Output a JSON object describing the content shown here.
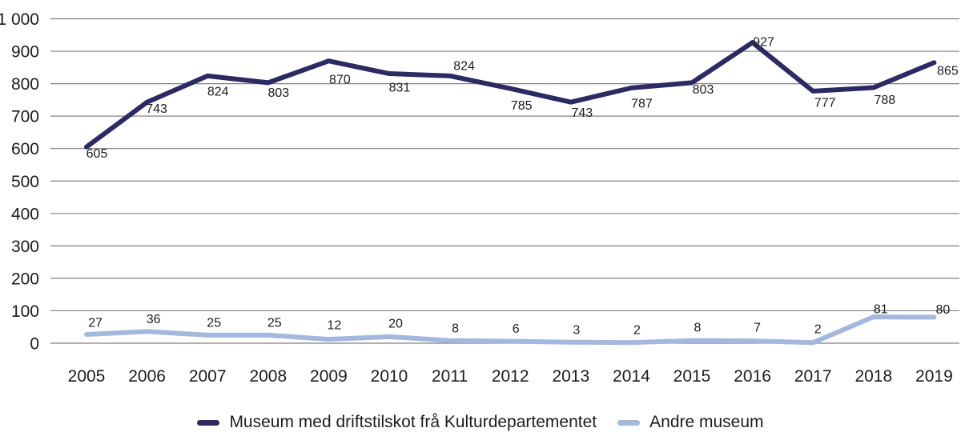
{
  "chart_data": {
    "type": "line",
    "title": "",
    "xlabel": "",
    "ylabel": "",
    "categories": [
      "2005",
      "2006",
      "2007",
      "2008",
      "2009",
      "2010",
      "2011",
      "2012",
      "2013",
      "2014",
      "2015",
      "2016",
      "2017",
      "2018",
      "2019"
    ],
    "y_axis": {
      "min": 0,
      "max": 1000,
      "step": 100,
      "tick_labels": [
        "0",
        "100",
        "200",
        "300",
        "400",
        "500",
        "600",
        "700",
        "800",
        "900",
        "1 000"
      ]
    },
    "grid": true,
    "legend_position": "bottom",
    "colors": {
      "grid_line": "#808080",
      "text": "#1c1c1c"
    },
    "series": [
      {
        "name": "Museum med driftstilskot frå Kulturdepartementet",
        "color": "#2B2A62",
        "values": [
          605,
          743,
          824,
          803,
          870,
          831,
          824,
          785,
          743,
          787,
          803,
          927,
          777,
          788,
          865
        ],
        "label_dx": [
          13,
          12,
          13,
          13,
          14,
          13,
          18,
          14,
          14,
          13,
          14,
          14,
          15,
          14,
          17
        ],
        "label_dy": [
          8,
          8,
          19,
          12,
          23,
          17,
          -13,
          21,
          13,
          19,
          8,
          -1,
          14,
          15,
          10
        ]
      },
      {
        "name": "Andre museum",
        "color": "#A4B7DE",
        "values": [
          27,
          36,
          25,
          25,
          12,
          20,
          8,
          6,
          3,
          2,
          8,
          7,
          2,
          81,
          80
        ],
        "label_dx": [
          11,
          8,
          8,
          8,
          7,
          8,
          7,
          7,
          7,
          7,
          7,
          6,
          6,
          9,
          11
        ],
        "label_dy": [
          -15,
          -16,
          -16,
          -16,
          -18,
          -17,
          -16,
          -16,
          -16,
          -16,
          -17,
          -17,
          -17,
          -10,
          -10
        ]
      }
    ]
  }
}
